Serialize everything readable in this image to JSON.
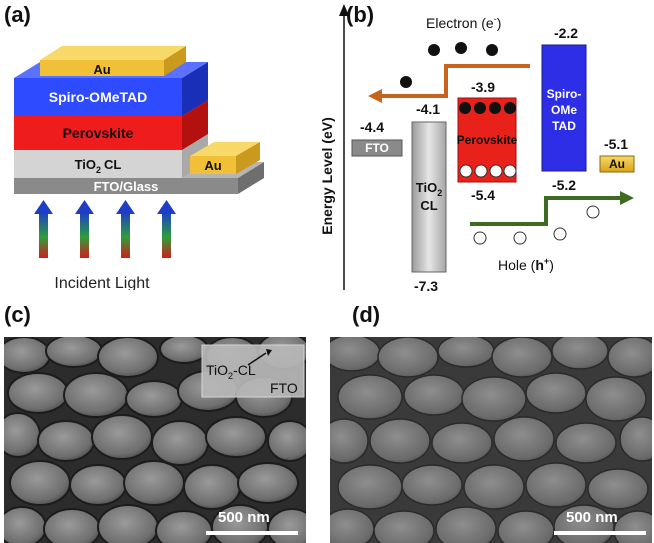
{
  "panels": {
    "a": "(a)",
    "b": "(b)",
    "c": "(c)",
    "d": "(d)"
  },
  "device": {
    "layers": [
      "Au",
      "Spiro-OMeTAD",
      "Perovskite",
      "TiO",
      "CL",
      "FTO/Glass"
    ],
    "au_contact": "Au",
    "tio2_sub": "2",
    "light_label": "Incident Light",
    "colors": {
      "au": "#F2C038",
      "spiro": "#2E4BFF",
      "perovskite": "#EE1C1C",
      "tio2": "#D4D4D4",
      "fto": "#8A8A8A"
    }
  },
  "energy": {
    "axis_label": "Energy Level (eV)",
    "electron_label": "Electron (e",
    "electron_sup": "-",
    "electron_close": ")",
    "hole_label": "Hole (",
    "hole_bold": "h",
    "hole_sup": "+",
    "hole_close": ")",
    "materials": {
      "fto": {
        "name": "FTO",
        "level": "-4.4"
      },
      "tio2": {
        "name_a": "TiO",
        "sub": "2",
        "name_b": "CL",
        "top": "-4.1",
        "bottom": "-7.3"
      },
      "perovskite": {
        "name": "Perovskite",
        "top": "-3.9",
        "bottom": "-5.4"
      },
      "spiro": {
        "name_a": "Spiro-",
        "name_b": "OMe",
        "name_c": "TAD",
        "top": "-2.2",
        "bottom": "-5.2"
      },
      "au": {
        "name": "Au",
        "level": "-5.1"
      }
    },
    "colors": {
      "electron_arrow": "#C8631E",
      "hole_arrow": "#3E6B22",
      "spiro": "#2E2EE6",
      "perovskite": "#E8221A"
    }
  },
  "sem_c": {
    "inset_a": "TiO",
    "inset_sub": "2",
    "inset_b": "-CL",
    "inset_fto": "FTO",
    "scale": "500 nm"
  },
  "sem_d": {
    "scale": "500 nm"
  }
}
